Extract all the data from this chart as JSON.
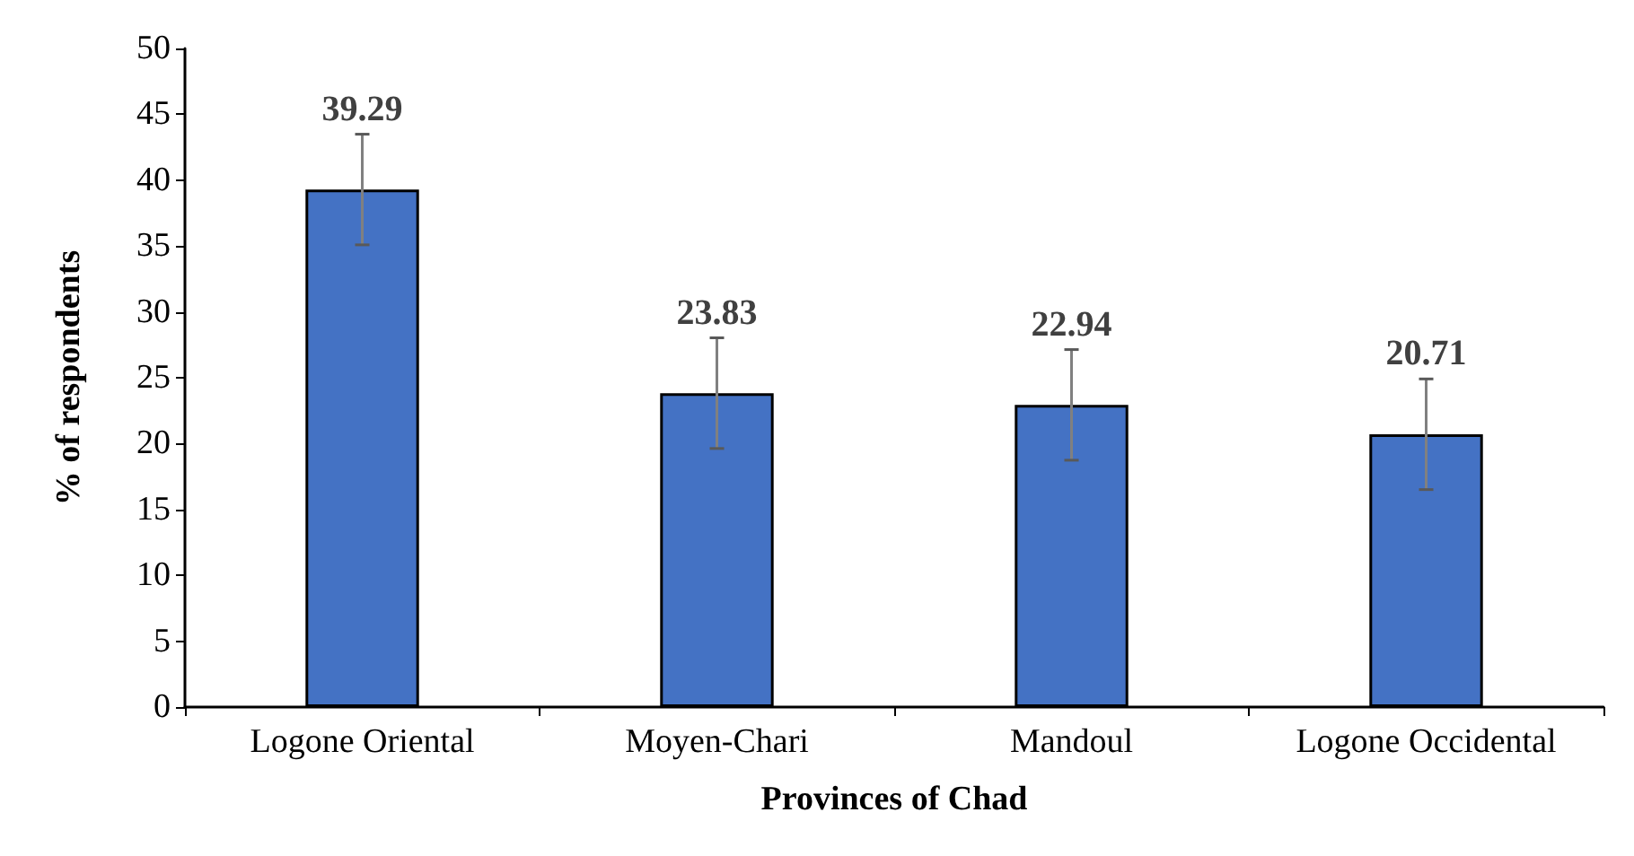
{
  "chart_data": {
    "type": "bar",
    "xlabel": "Provinces of Chad",
    "ylabel": "% of respondents",
    "categories": [
      "Logone Oriental",
      "Moyen-Chari",
      "Mandoul",
      "Logone Occidental"
    ],
    "values": [
      39.29,
      23.83,
      22.94,
      20.71
    ],
    "errors": [
      4.2,
      4.2,
      4.2,
      4.2
    ],
    "color": "#4472c4",
    "data_labels": true,
    "grid": false,
    "ylim": [
      0,
      50
    ],
    "yticks": [
      0,
      5,
      10,
      15,
      20,
      25,
      30,
      35,
      40,
      45,
      50
    ]
  }
}
